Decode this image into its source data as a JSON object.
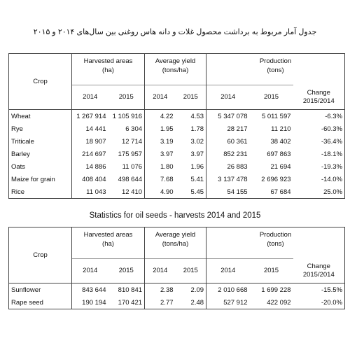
{
  "page_title": "جدول آمار مربوط به برداشت محصول غلات و دانه هاس روغنی بین سال‌های ۲۰۱۴ و ۲۰۱۵",
  "grains_table": {
    "crop_header": "Crop",
    "harvested_header": "Harvested areas",
    "harvested_unit": "(ha)",
    "yield_header": "Average yield",
    "yield_unit": "(tons/ha)",
    "production_header": "Production",
    "production_unit": "(tons)",
    "change_header_1": "Change",
    "change_header_2": "2015/2014",
    "year_a": "2014",
    "year_b": "2015",
    "rows": [
      {
        "crop": "Wheat",
        "area_2014": "1 267 914",
        "area_2015": "1 105 916",
        "yield_2014": "4.22",
        "yield_2015": "4.53",
        "prod_2014": "5 347 078",
        "prod_2015": "5 011 597",
        "change": "-6.3%"
      },
      {
        "crop": "Rye",
        "area_2014": "14 441",
        "area_2015": "6 304",
        "yield_2014": "1.95",
        "yield_2015": "1.78",
        "prod_2014": "28 217",
        "prod_2015": "11 210",
        "change": "-60.3%"
      },
      {
        "crop": "Triticale",
        "area_2014": "18 907",
        "area_2015": "12 714",
        "yield_2014": "3.19",
        "yield_2015": "3.02",
        "prod_2014": "60 361",
        "prod_2015": "38 402",
        "change": "-36.4%"
      },
      {
        "crop": "Barley",
        "area_2014": "214 697",
        "area_2015": "175 957",
        "yield_2014": "3.97",
        "yield_2015": "3.97",
        "prod_2014": "852 231",
        "prod_2015": "697 863",
        "change": "-18.1%"
      },
      {
        "crop": "Oats",
        "area_2014": "14 886",
        "area_2015": "11 076",
        "yield_2014": "1.80",
        "yield_2015": "1.96",
        "prod_2014": "26 883",
        "prod_2015": "21 694",
        "change": "-19.3%"
      },
      {
        "crop": "Maize for grain",
        "area_2014": "408 404",
        "area_2015": "498 644",
        "yield_2014": "7.68",
        "yield_2015": "5.41",
        "prod_2014": "3 137 478",
        "prod_2015": "2 696 923",
        "change": "-14.0%"
      },
      {
        "crop": "Rice",
        "area_2014": "11 043",
        "area_2015": "12 410",
        "yield_2014": "4.90",
        "yield_2015": "5.45",
        "prod_2014": "54 155",
        "prod_2015": "67 684",
        "change": "25.0%"
      }
    ]
  },
  "oilseeds_title": "Statistics for oil seeds - harvests 2014 and 2015",
  "oilseeds_table": {
    "crop_header": "Crop",
    "harvested_header": "Harvested areas",
    "harvested_unit": "(ha)",
    "yield_header": "Average yield",
    "yield_unit": "(tons/ha)",
    "production_header": "Production",
    "production_unit": "(tons)",
    "change_header_1": "Change",
    "change_header_2": "2015/2014",
    "year_a": "2014",
    "year_b": "2015",
    "rows": [
      {
        "crop": "Sunflower",
        "area_2014": "843 644",
        "area_2015": "810 841",
        "yield_2014": "2.38",
        "yield_2015": "2.09",
        "prod_2014": "2 010 668",
        "prod_2015": "1 699 228",
        "change": "-15.5%"
      },
      {
        "crop": "Rape seed",
        "area_2014": "190 194",
        "area_2015": "170 421",
        "yield_2014": "2.77",
        "yield_2015": "2.48",
        "prod_2014": "527 912",
        "prod_2015": "422 092",
        "change": "-20.0%"
      }
    ]
  }
}
